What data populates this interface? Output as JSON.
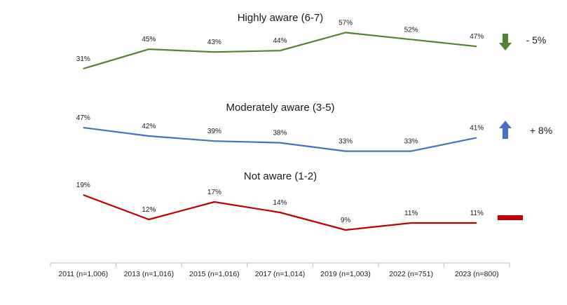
{
  "chart_data": {
    "type": "line",
    "categories": [
      "2011 (n=1,006)",
      "2013 (n=1,016)",
      "2015 (n=1,016)",
      "2017 (n=1,014)",
      "2019 (n=1,003)",
      "2022 (n=751)",
      "2023 (n=800)"
    ],
    "series": [
      {
        "name": "Highly aware (6-7)",
        "values": [
          31,
          45,
          43,
          44,
          57,
          52,
          47
        ],
        "labels": [
          "31%",
          "45%",
          "43%",
          "44%",
          "57%",
          "52%",
          "47%"
        ],
        "color": "#548235",
        "change": "- 5%",
        "indicator": "down-arrow-icon"
      },
      {
        "name": "Moderately aware (3-5)",
        "values": [
          47,
          42,
          39,
          38,
          33,
          33,
          41
        ],
        "labels": [
          "47%",
          "42%",
          "39%",
          "38%",
          "33%",
          "33%",
          "41%"
        ],
        "color": "#4472C4",
        "change": "+ 8%",
        "indicator": "up-arrow-icon"
      },
      {
        "name": "Not aware (1-2)",
        "values": [
          19,
          12,
          17,
          14,
          9,
          11,
          11
        ],
        "labels": [
          "19%",
          "12%",
          "17%",
          "14%",
          "9%",
          "11%",
          "11%"
        ],
        "color": "#C00000",
        "change": "",
        "indicator": "no-change-bar-icon"
      }
    ],
    "grid": false,
    "legend": "none"
  }
}
